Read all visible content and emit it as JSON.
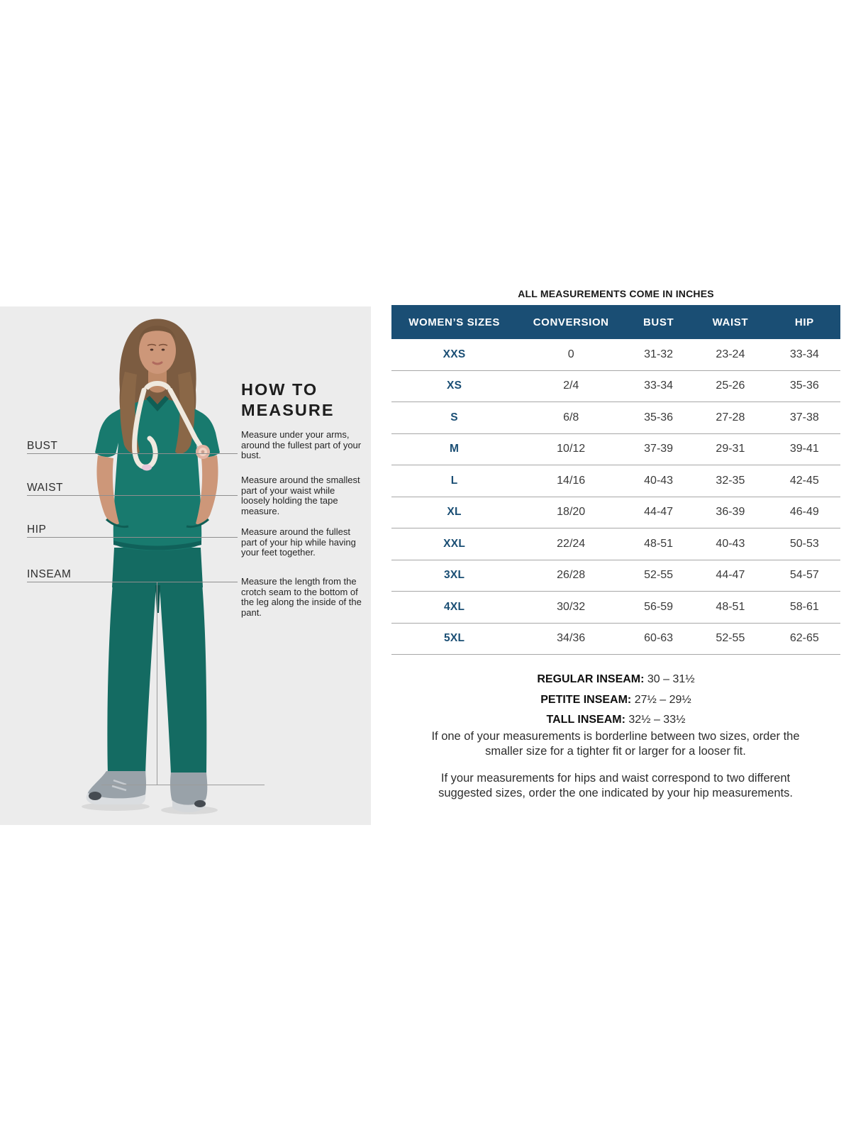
{
  "colors": {
    "header_navy": "#1a4e74",
    "panel_gray": "#ececec",
    "divider_gray": "#a7a7a7",
    "scrub_teal": "#187a6e",
    "measure_line_gray": "#8f8f8f"
  },
  "measure_panel": {
    "heading_lines": [
      "HOW TO",
      "MEASURE"
    ],
    "labels": [
      "BUST",
      "WAIST",
      "HIP",
      "INSEAM"
    ],
    "instructions": [
      "Measure under your arms, around the fullest part of your bust.",
      "Measure around the smallest part of your waist while loosely holding the tape measure.",
      "Measure around the fullest part of your hip while having your feet together.",
      "Measure the length from the crotch seam to the bottom of the leg along the inside of the pant."
    ],
    "photo": "woman-in-teal-scrubs-with-stethoscope"
  },
  "size_chart": {
    "title": "ALL MEASUREMENTS COME IN INCHES",
    "columns": [
      "WOMEN’S SIZES",
      "CONVERSION",
      "BUST",
      "WAIST",
      "HIP"
    ],
    "rows": [
      {
        "size": "XXS",
        "conversion": "0",
        "bust": "31-32",
        "waist": "23-24",
        "hip": "33-34"
      },
      {
        "size": "XS",
        "conversion": "2/4",
        "bust": "33-34",
        "waist": "25-26",
        "hip": "35-36"
      },
      {
        "size": "S",
        "conversion": "6/8",
        "bust": "35-36",
        "waist": "27-28",
        "hip": "37-38"
      },
      {
        "size": "M",
        "conversion": "10/12",
        "bust": "37-39",
        "waist": "29-31",
        "hip": "39-41"
      },
      {
        "size": "L",
        "conversion": "14/16",
        "bust": "40-43",
        "waist": "32-35",
        "hip": "42-45"
      },
      {
        "size": "XL",
        "conversion": "18/20",
        "bust": "44-47",
        "waist": "36-39",
        "hip": "46-49"
      },
      {
        "size": "XXL",
        "conversion": "22/24",
        "bust": "48-51",
        "waist": "40-43",
        "hip": "50-53"
      },
      {
        "size": "3XL",
        "conversion": "26/28",
        "bust": "52-55",
        "waist": "44-47",
        "hip": "54-57"
      },
      {
        "size": "4XL",
        "conversion": "30/32",
        "bust": "56-59",
        "waist": "48-51",
        "hip": "58-61"
      },
      {
        "size": "5XL",
        "conversion": "34/36",
        "bust": "60-63",
        "waist": "52-55",
        "hip": "62-65"
      }
    ],
    "notes": [
      {
        "label": "REGULAR INSEAM:",
        "value": "30 – 31½"
      },
      {
        "label": "PETITE INSEAM:",
        "value": "27½ – 29½"
      },
      {
        "label": "TALL INSEAM:",
        "value": "32½ – 33½"
      }
    ],
    "paragraphs": [
      "If one of your measurements is borderline between two sizes, order the smaller size for a tighter fit or larger for a looser fit.",
      "If your measurements for hips and waist correspond to two different suggested sizes, order the one indicated by your hip measurements."
    ]
  }
}
